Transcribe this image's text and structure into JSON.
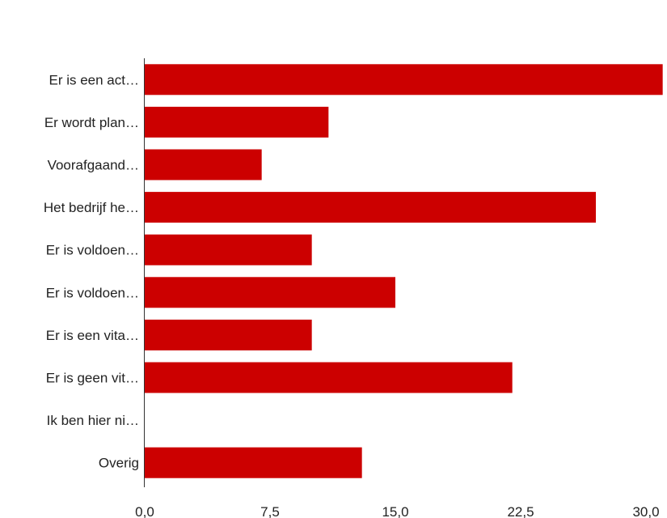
{
  "chart_data": {
    "type": "bar",
    "orientation": "horizontal",
    "categories": [
      "Er is een act…",
      "Er wordt plan…",
      "Voorafgaand…",
      "Het bedrijf he…",
      "Er is voldoen…",
      "Er is voldoen…",
      "Er is een vita…",
      "Er is geen vit…",
      "Ik ben hier ni…",
      "Overig"
    ],
    "values": [
      31,
      11,
      7,
      27,
      10,
      15,
      10,
      22,
      0,
      13
    ],
    "xlim": [
      0,
      30
    ],
    "ticks": [
      0,
      7.5,
      15,
      22.5,
      30
    ],
    "tick_labels": [
      "0,0",
      "7,5",
      "15,0",
      "22,5",
      "30,0"
    ],
    "title": "",
    "xlabel": "",
    "ylabel": "",
    "grid": false,
    "bar_color": "#cc0000",
    "axis_color": "#333333"
  }
}
